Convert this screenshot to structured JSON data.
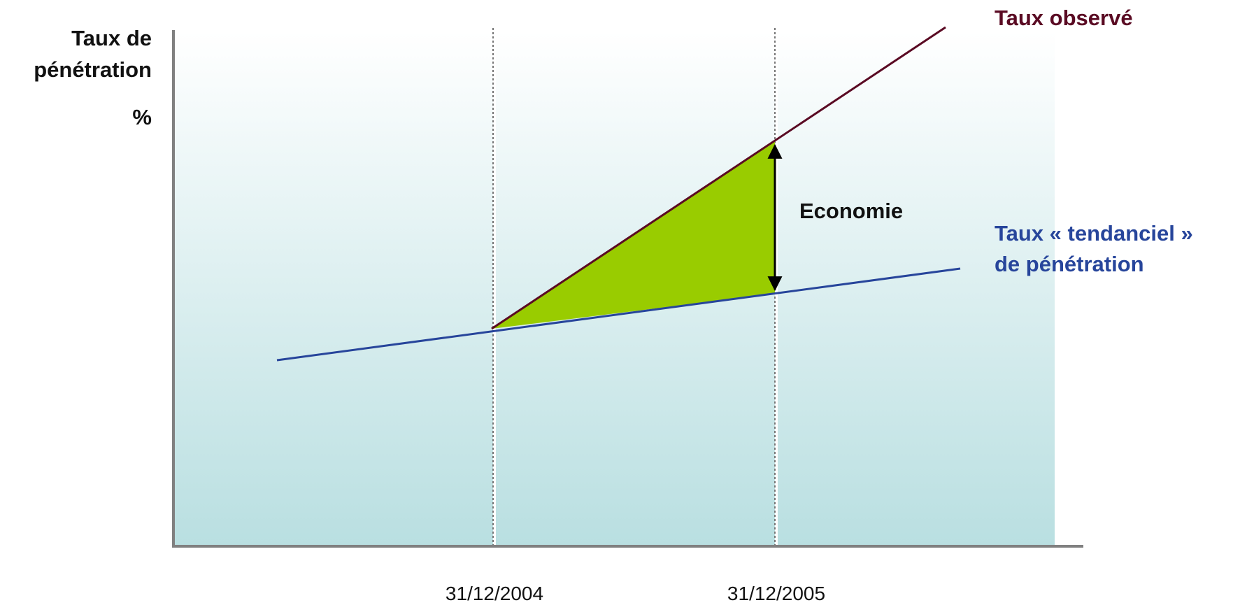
{
  "diagram": {
    "y_axis_title_line1": "Taux de",
    "y_axis_title_line2": "pénétration",
    "y_axis_unit": "%",
    "x_tick_1": "31/12/2004",
    "x_tick_2": "31/12/2005",
    "observed_label": "Taux observé",
    "trend_label_line1": "Taux « tendanciel »",
    "trend_label_line2": "de pénétration",
    "gap_label": "Economie"
  },
  "colors": {
    "observed_line": "#5a0a23",
    "trend_line": "#27459b",
    "gap_fill": "#99cc00",
    "background_top": "#ffffff",
    "background_bottom": "#b9dfe1",
    "axis": "#808080"
  }
}
